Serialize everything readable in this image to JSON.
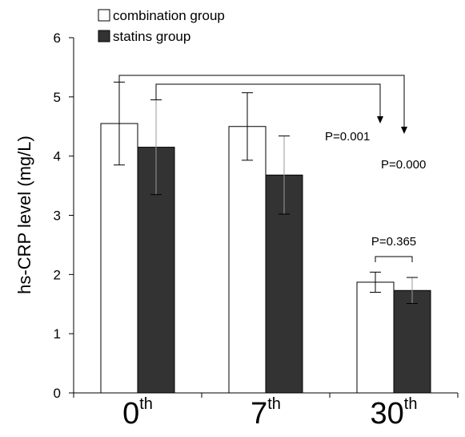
{
  "chart_data": {
    "type": "bar",
    "title": "",
    "xlabel": "",
    "ylabel": "hs-CRP level (mg/L)",
    "ylim": [
      0,
      6
    ],
    "yticks": [
      0,
      1,
      2,
      3,
      4,
      5,
      6
    ],
    "grid": false,
    "legend_position": "top-left",
    "categories": [
      {
        "main": "0",
        "sup": "th"
      },
      {
        "main": "7",
        "sup": "th"
      },
      {
        "main": "30",
        "sup": "th"
      }
    ],
    "series": [
      {
        "name": "combination group",
        "color": "#ffffff",
        "values": [
          4.55,
          4.5,
          1.87
        ],
        "errors": [
          0.7,
          0.57,
          0.17
        ]
      },
      {
        "name": "statins group",
        "color": "#333333",
        "values": [
          4.15,
          3.68,
          1.73
        ],
        "errors": [
          0.8,
          0.66,
          0.22
        ]
      }
    ],
    "annotations": [
      {
        "text": "P=0.001"
      },
      {
        "text": "P=0.000"
      },
      {
        "text": "P=0.365"
      }
    ]
  }
}
